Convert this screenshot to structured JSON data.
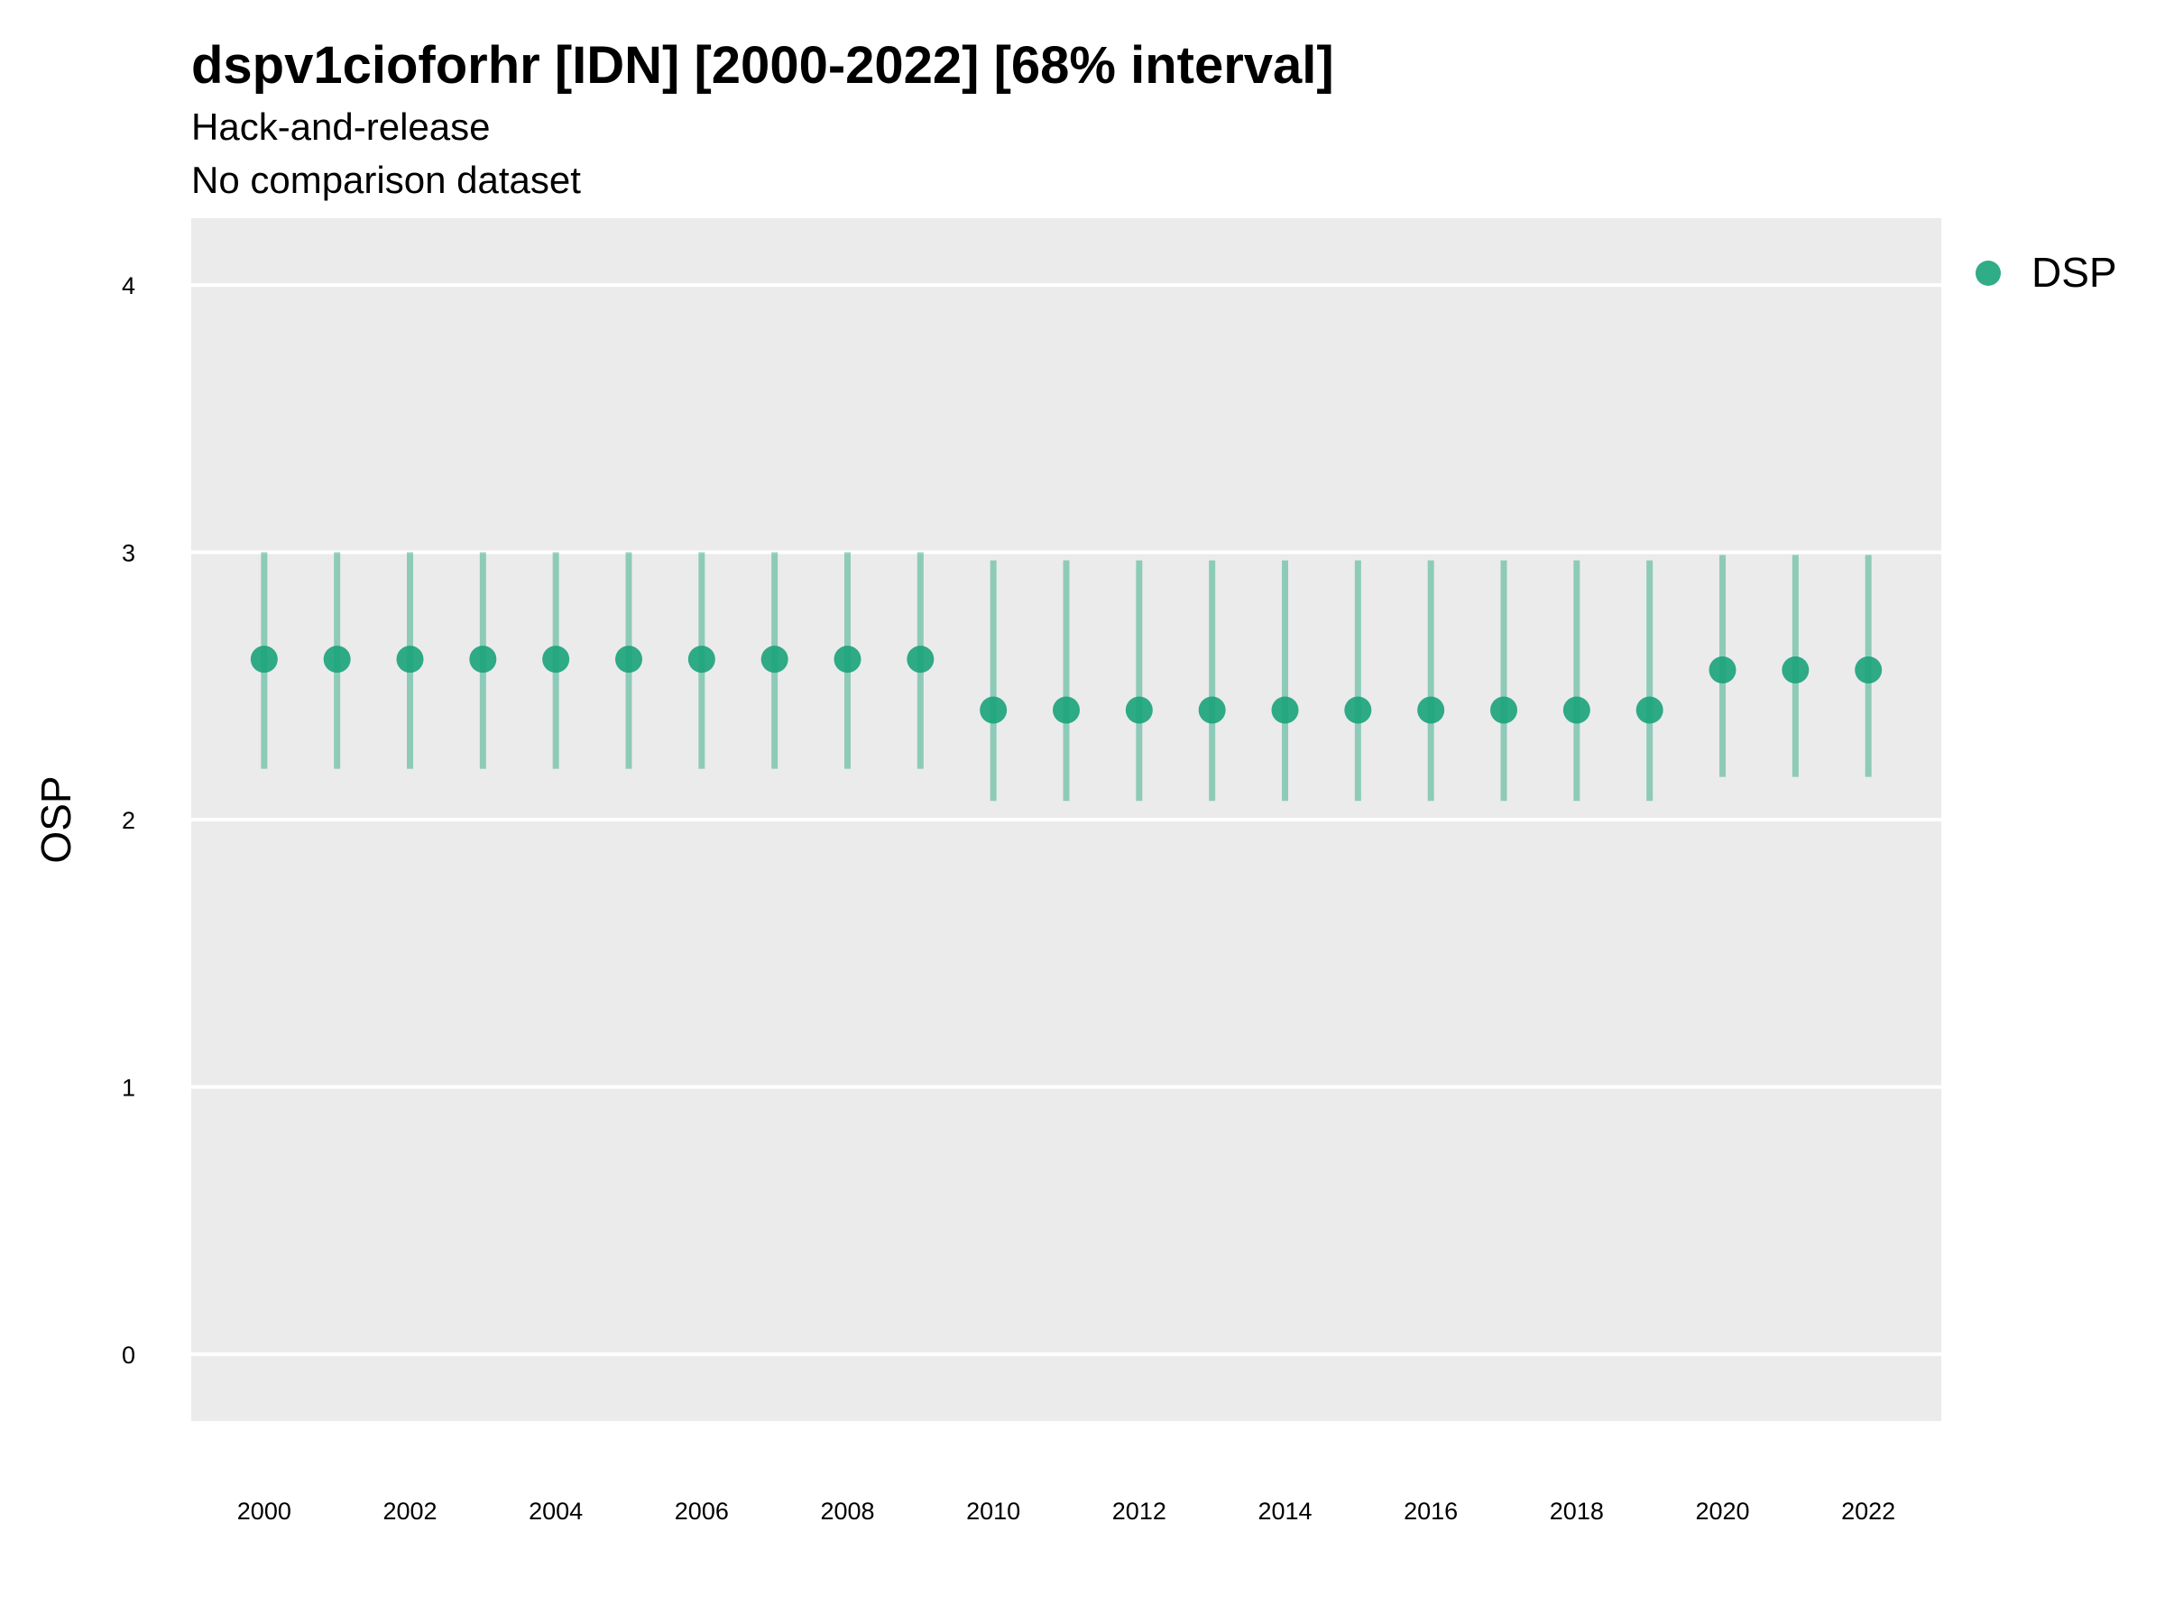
{
  "chart_data": {
    "type": "scatter",
    "title": "dspv1cioforhr [IDN] [2000-2022] [68% interval]",
    "subtitle": "Hack-and-release",
    "subtitle2": "No comparison dataset",
    "xlabel": "",
    "ylabel": "OSP",
    "ylim": [
      -0.25,
      4.25
    ],
    "xlim": [
      1999.0,
      2023.0
    ],
    "x_ticks": [
      "2000",
      "2002",
      "2004",
      "2006",
      "2008",
      "2010",
      "2012",
      "2014",
      "2016",
      "2018",
      "2020",
      "2022"
    ],
    "y_ticks": [
      "0",
      "1",
      "2",
      "3",
      "4"
    ],
    "grid": true,
    "legend_position": "right",
    "series": [
      {
        "name": "DSP",
        "color": "#1aa37a",
        "x": [
          2000,
          2001,
          2002,
          2003,
          2004,
          2005,
          2006,
          2007,
          2008,
          2009,
          2010,
          2011,
          2012,
          2013,
          2014,
          2015,
          2016,
          2017,
          2018,
          2019,
          2020,
          2021,
          2022
        ],
        "y": [
          2.6,
          2.6,
          2.6,
          2.6,
          2.6,
          2.6,
          2.6,
          2.6,
          2.6,
          2.6,
          2.41,
          2.41,
          2.41,
          2.41,
          2.41,
          2.41,
          2.41,
          2.41,
          2.41,
          2.41,
          2.56,
          2.56,
          2.56
        ],
        "lower": [
          2.19,
          2.19,
          2.19,
          2.19,
          2.19,
          2.19,
          2.19,
          2.19,
          2.19,
          2.19,
          2.07,
          2.07,
          2.07,
          2.07,
          2.07,
          2.07,
          2.07,
          2.07,
          2.07,
          2.07,
          2.16,
          2.16,
          2.16
        ],
        "upper": [
          3.0,
          3.0,
          3.0,
          3.0,
          3.0,
          3.0,
          3.0,
          3.0,
          3.0,
          3.0,
          2.97,
          2.97,
          2.97,
          2.97,
          2.97,
          2.97,
          2.97,
          2.97,
          2.97,
          2.97,
          2.99,
          2.99,
          2.99
        ]
      }
    ]
  }
}
